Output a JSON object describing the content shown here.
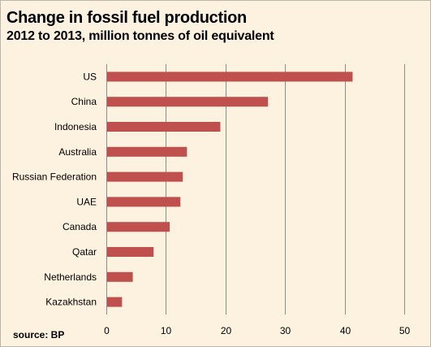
{
  "header": {
    "title": "Change in fossil fuel production",
    "subtitle": "2012 to 2013, million tonnes of oil equivalent"
  },
  "footer": {
    "source": "source: BP"
  },
  "colors": {
    "background": "#fdf1e0",
    "bar": "#c0504d",
    "grid": "#8c8c8c"
  },
  "chart_data": {
    "type": "bar",
    "orientation": "horizontal",
    "title": "Change in fossil fuel production",
    "subtitle": "2012 to 2013, million tonnes of oil equivalent",
    "categories": [
      "US",
      "China",
      "Indonesia",
      "Australia",
      "Russian Federation",
      "UAE",
      "Canada",
      "Qatar",
      "Netherlands",
      "Kazakhstan"
    ],
    "values": [
      41.2,
      27.0,
      19.0,
      13.4,
      12.7,
      12.3,
      10.5,
      7.8,
      4.3,
      2.5
    ],
    "xlim": [
      0,
      50
    ],
    "xticks": [
      0,
      10,
      20,
      30,
      40,
      50
    ],
    "grid": true,
    "legend": "none"
  }
}
